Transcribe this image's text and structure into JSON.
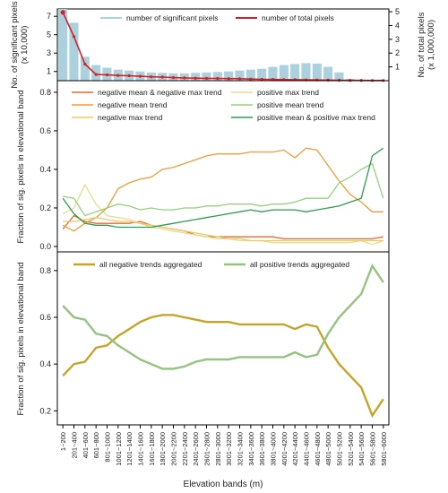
{
  "chart_data": [
    {
      "type": "bar+line",
      "ylabel_left": "No. of significant pixels (x 10,000)",
      "ylabel_right": "No. of total pixels (x 1,000,000)",
      "left_ticks": [
        1,
        3,
        5,
        7
      ],
      "right_ticks": [
        1,
        2,
        3,
        4,
        5
      ],
      "ylim_left": [
        0,
        7.8
      ],
      "ylim_right": [
        0,
        5.2
      ],
      "legend": {
        "placement": "top",
        "items": [
          "number of significant pixels",
          "number of total pixels"
        ]
      },
      "series": [
        {
          "name": "number of significant pixels",
          "kind": "bar",
          "color": "#abd1df",
          "values": [
            7.8,
            6.3,
            2.6,
            1.7,
            1.4,
            1.2,
            1.1,
            1.0,
            0.9,
            0.85,
            0.8,
            0.8,
            0.85,
            0.9,
            0.95,
            1.0,
            1.1,
            1.2,
            1.3,
            1.5,
            1.7,
            1.8,
            1.9,
            1.85,
            1.5,
            0.9,
            0.2,
            0.05,
            0.03,
            0.02
          ]
        },
        {
          "name": "number of total pixels",
          "kind": "line",
          "color": "#d62020",
          "values": [
            4.95,
            3.2,
            1.2,
            0.45,
            0.42,
            0.38,
            0.36,
            0.32,
            0.28,
            0.26,
            0.22,
            0.2,
            0.18,
            0.17,
            0.16,
            0.15,
            0.14,
            0.12,
            0.1,
            0.09,
            0.08,
            0.07,
            0.06,
            0.05,
            0.04,
            0.03,
            0.02,
            0.02,
            0.01,
            0.01
          ]
        }
      ]
    },
    {
      "type": "line",
      "ylabel": "Fraction of sig. pixels in elevational band",
      "y_ticks": [
        "0.0",
        "0.2",
        "0.4",
        "0.6",
        "0.8"
      ],
      "ylim": [
        0,
        0.86
      ],
      "legend": {
        "placement": "top",
        "columns": 2,
        "items": [
          "negative mean & negative max trend",
          "positive max trend",
          "negative mean trend",
          "positive mean trend",
          "negative max trend",
          "positive mean & positive max trend"
        ]
      },
      "series": [
        {
          "name": "negative mean & negative max trend",
          "color": "#e8692a",
          "values": [
            0.09,
            0.16,
            0.13,
            0.12,
            0.12,
            0.12,
            0.12,
            0.13,
            0.11,
            0.1,
            0.09,
            0.08,
            0.06,
            0.05,
            0.05,
            0.05,
            0.05,
            0.05,
            0.05,
            0.05,
            0.04,
            0.04,
            0.04,
            0.04,
            0.04,
            0.04,
            0.04,
            0.04,
            0.04,
            0.05
          ]
        },
        {
          "name": "positive max trend",
          "color": "#e4df8e",
          "values": [
            0.17,
            0.2,
            0.32,
            0.22,
            0.16,
            0.15,
            0.14,
            0.12,
            0.1,
            0.09,
            0.08,
            0.07,
            0.06,
            0.05,
            0.04,
            0.04,
            0.03,
            0.03,
            0.03,
            0.02,
            0.02,
            0.02,
            0.02,
            0.02,
            0.02,
            0.02,
            0.02,
            0.03,
            0.01,
            0.03
          ]
        },
        {
          "name": "negative mean trend",
          "color": "#f19b3a",
          "values": [
            0.11,
            0.08,
            0.12,
            0.15,
            0.2,
            0.3,
            0.33,
            0.35,
            0.36,
            0.4,
            0.41,
            0.43,
            0.45,
            0.47,
            0.48,
            0.48,
            0.48,
            0.49,
            0.49,
            0.49,
            0.5,
            0.46,
            0.51,
            0.5,
            0.42,
            0.34,
            0.27,
            0.23,
            0.18,
            0.18
          ]
        },
        {
          "name": "positive mean trend",
          "color": "#96d17e",
          "values": [
            0.26,
            0.25,
            0.16,
            0.18,
            0.2,
            0.22,
            0.21,
            0.19,
            0.2,
            0.19,
            0.19,
            0.2,
            0.2,
            0.21,
            0.21,
            0.22,
            0.22,
            0.22,
            0.21,
            0.22,
            0.22,
            0.23,
            0.25,
            0.25,
            0.25,
            0.33,
            0.36,
            0.4,
            0.43,
            0.25
          ]
        },
        {
          "name": "negative max trend",
          "color": "#f0c66a",
          "values": [
            0.13,
            0.13,
            0.14,
            0.15,
            0.14,
            0.13,
            0.13,
            0.12,
            0.11,
            0.1,
            0.09,
            0.08,
            0.07,
            0.06,
            0.05,
            0.04,
            0.04,
            0.03,
            0.03,
            0.03,
            0.03,
            0.03,
            0.03,
            0.03,
            0.03,
            0.03,
            0.03,
            0.03,
            0.03,
            0.03
          ]
        },
        {
          "name": "positive mean & positive max trend",
          "color": "#2e9e52",
          "values": [
            0.25,
            0.17,
            0.12,
            0.11,
            0.11,
            0.1,
            0.1,
            0.1,
            0.1,
            0.11,
            0.12,
            0.13,
            0.14,
            0.15,
            0.16,
            0.17,
            0.18,
            0.19,
            0.18,
            0.19,
            0.19,
            0.19,
            0.18,
            0.19,
            0.2,
            0.21,
            0.23,
            0.25,
            0.47,
            0.51
          ]
        }
      ]
    },
    {
      "type": "line",
      "ylabel": "Fraction of sig. pixels in elevational band",
      "xlabel": "Elevation bands (m)",
      "y_ticks": [
        "0.2",
        "0.4",
        "0.6",
        "0.8"
      ],
      "ylim": [
        0.14,
        0.88
      ],
      "legend": {
        "placement": "top",
        "items": [
          "all negative trends aggregated",
          "all positive trends aggregated"
        ]
      },
      "categories": [
        "1~200",
        "201~400",
        "401~600",
        "601~800",
        "801~1000",
        "1001~1200",
        "1201~1400",
        "1401~1600",
        "1601~1800",
        "1801~2000",
        "2001~2200",
        "2201~2400",
        "2401~2600",
        "2601~2800",
        "2801~3000",
        "3001~3200",
        "3201~3400",
        "3401~3600",
        "3601~3800",
        "3801~4000",
        "4001~4200",
        "4201~4400",
        "4401~4600",
        "4601~4800",
        "4801~5000",
        "5001~5200",
        "5201~5400",
        "5401~5600",
        "5601~5800",
        "5801~6000"
      ],
      "series": [
        {
          "name": "all negative trends aggregated",
          "color": "#c5a42c",
          "values": [
            0.35,
            0.4,
            0.41,
            0.47,
            0.48,
            0.52,
            0.55,
            0.58,
            0.6,
            0.61,
            0.61,
            0.6,
            0.59,
            0.58,
            0.58,
            0.58,
            0.57,
            0.57,
            0.57,
            0.57,
            0.57,
            0.55,
            0.57,
            0.56,
            0.47,
            0.4,
            0.35,
            0.3,
            0.18,
            0.25
          ]
        },
        {
          "name": "all positive trends aggregated",
          "color": "#96c37f",
          "values": [
            0.65,
            0.6,
            0.59,
            0.53,
            0.52,
            0.48,
            0.45,
            0.42,
            0.4,
            0.38,
            0.38,
            0.39,
            0.41,
            0.42,
            0.42,
            0.42,
            0.43,
            0.43,
            0.43,
            0.43,
            0.43,
            0.45,
            0.43,
            0.44,
            0.53,
            0.6,
            0.65,
            0.7,
            0.82,
            0.75
          ]
        }
      ]
    }
  ]
}
